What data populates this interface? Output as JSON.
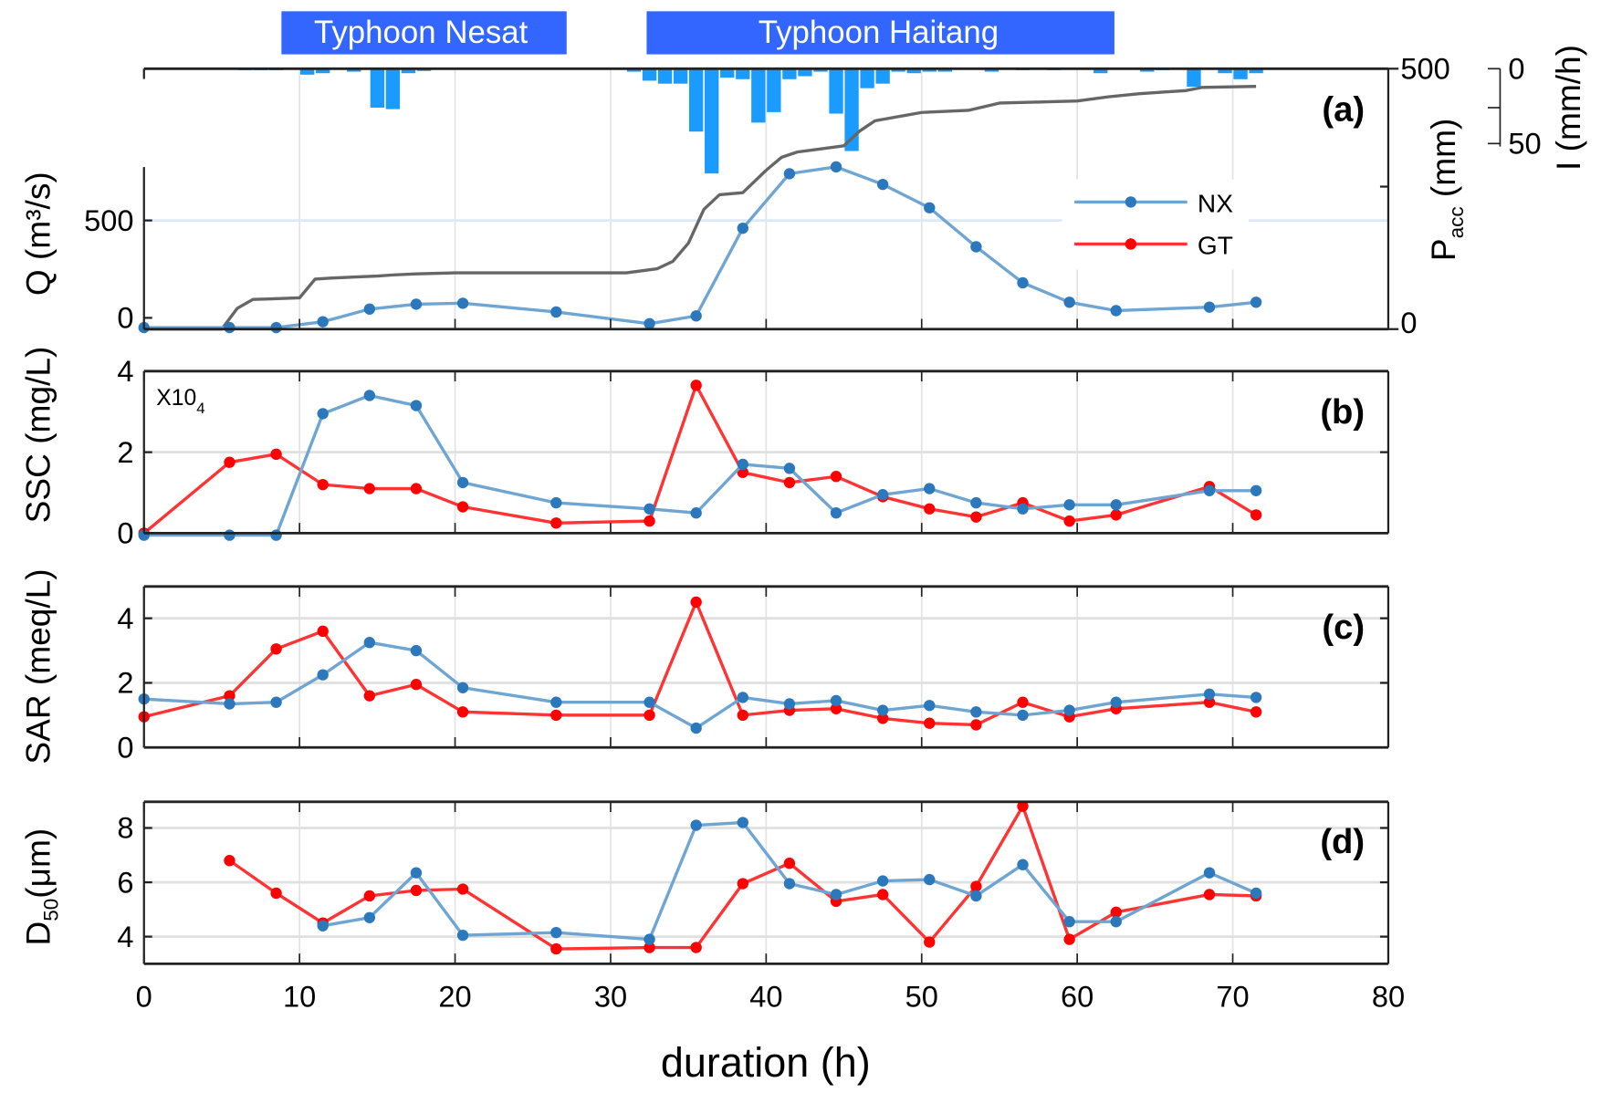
{
  "chart_data": [
    {
      "panel": "(a)",
      "type": "line",
      "typhoons": [
        "Typhoon Nesat",
        "Typhoon Haitang"
      ],
      "xlabel": "duration (h)",
      "xlim": [
        0,
        80
      ],
      "xticks": [
        0,
        10,
        20,
        30,
        40,
        50,
        60,
        70,
        80
      ],
      "ylabel": "Q (m³/s)",
      "yticks": [
        0,
        500
      ],
      "y2label": "P",
      "y2label_sub": "acc",
      "y2label_unit": " (mm)",
      "y2ticks": [
        0,
        500
      ],
      "y3label": "I (mm/h)",
      "y3ticks": [
        0,
        50
      ],
      "legend": [
        "NX",
        "GT"
      ],
      "legend_position": "right",
      "series": [
        {
          "name": "NX",
          "x": [
            0,
            5.5,
            8.5,
            11.5,
            14.5,
            17.5,
            20.5,
            26.5,
            32.5,
            35.5,
            38.5,
            41.5,
            44.5,
            47.5,
            50.5,
            53.5,
            56.5,
            59.5,
            62.5,
            68.5,
            71.5
          ],
          "values": [
            -50,
            -50,
            -50,
            -20,
            45,
            70,
            75,
            30,
            -30,
            10,
            460,
            740,
            775,
            685,
            565,
            365,
            180,
            80,
            37,
            55,
            80
          ]
        }
      ],
      "pacc": {
        "x": [
          0,
          5,
          6,
          7,
          8,
          10,
          11,
          12,
          15,
          16,
          17.5,
          20,
          31,
          33,
          34,
          35,
          36,
          37,
          38.5,
          40,
          41,
          42,
          45,
          46,
          47,
          50,
          53,
          55,
          60,
          62,
          64,
          67,
          68,
          71.5
        ],
        "values": [
          0,
          0,
          40,
          57,
          58,
          60,
          96,
          98,
          102,
          104,
          106,
          108,
          108,
          116,
          130,
          165,
          230,
          258,
          262,
          305,
          330,
          340,
          352,
          380,
          400,
          416,
          420,
          434,
          438,
          446,
          452,
          458,
          464,
          466
        ]
      },
      "rain": {
        "x": [
          6.5,
          7.5,
          8.5,
          10.5,
          11.5,
          13.5,
          15,
          16,
          17,
          18,
          31.5,
          32.5,
          33.5,
          34.5,
          35.5,
          36.5,
          37.5,
          38.5,
          39.5,
          40.5,
          41.5,
          42.5,
          43.5,
          44.5,
          45.5,
          46.5,
          47.5,
          48.5,
          49.5,
          50.5,
          51.5,
          54.5,
          56.5,
          58.5,
          61.5,
          64.5,
          65.5,
          67.5,
          69.5,
          70.5,
          71.5
        ],
        "values": [
          1,
          1,
          1,
          4,
          3,
          2,
          26,
          27,
          3,
          1.5,
          2,
          8,
          10,
          10,
          42,
          70,
          6,
          7,
          36,
          29,
          7,
          5,
          2,
          30,
          55,
          13,
          10,
          2,
          3,
          2,
          2,
          2,
          1,
          1,
          3,
          2,
          1,
          12,
          3,
          7,
          3
        ]
      }
    },
    {
      "panel": "(b)",
      "type": "line",
      "ylabel": "SSC (mg/L)",
      "multiplier": "X10",
      "multiplier_exp": "4",
      "ylim": [
        0,
        4
      ],
      "yticks": [
        0,
        2,
        4
      ],
      "series": [
        {
          "name": "NX",
          "x": [
            0,
            5.5,
            8.5,
            11.5,
            14.5,
            17.5,
            20.5,
            26.5,
            32.5,
            35.5,
            38.5,
            41.5,
            44.5,
            47.5,
            50.5,
            53.5,
            56.5,
            59.5,
            62.5,
            68.5,
            71.5
          ],
          "values": [
            -0.05,
            -0.05,
            -0.05,
            2.95,
            3.4,
            3.15,
            1.25,
            0.75,
            0.6,
            0.5,
            1.7,
            1.6,
            0.5,
            0.95,
            1.1,
            0.75,
            0.6,
            0.7,
            0.7,
            1.05,
            1.05
          ]
        },
        {
          "name": "GT",
          "x": [
            0,
            5.5,
            8.5,
            11.5,
            14.5,
            17.5,
            20.5,
            26.5,
            32.5,
            35.5,
            38.5,
            41.5,
            44.5,
            47.5,
            50.5,
            53.5,
            56.5,
            59.5,
            62.5,
            68.5,
            71.5
          ],
          "values": [
            0,
            1.75,
            1.95,
            1.2,
            1.1,
            1.1,
            0.65,
            0.25,
            0.3,
            3.65,
            1.5,
            1.25,
            1.4,
            0.9,
            0.6,
            0.4,
            0.75,
            0.3,
            0.45,
            1.15,
            0.45
          ]
        }
      ]
    },
    {
      "panel": "(c)",
      "type": "line",
      "ylabel": "SAR (meq/L)",
      "ylim": [
        0,
        5
      ],
      "yticks": [
        0,
        2,
        4
      ],
      "series": [
        {
          "name": "NX",
          "x": [
            0,
            5.5,
            8.5,
            11.5,
            14.5,
            17.5,
            20.5,
            26.5,
            32.5,
            35.5,
            38.5,
            41.5,
            44.5,
            47.5,
            50.5,
            53.5,
            56.5,
            59.5,
            62.5,
            68.5,
            71.5
          ],
          "values": [
            1.5,
            1.35,
            1.4,
            2.25,
            3.25,
            3.0,
            1.85,
            1.4,
            1.4,
            0.6,
            1.55,
            1.35,
            1.45,
            1.15,
            1.3,
            1.1,
            1.0,
            1.15,
            1.4,
            1.65,
            1.55
          ]
        },
        {
          "name": "GT",
          "x": [
            0,
            5.5,
            8.5,
            11.5,
            14.5,
            17.5,
            20.5,
            26.5,
            32.5,
            35.5,
            38.5,
            41.5,
            44.5,
            47.5,
            50.5,
            53.5,
            56.5,
            59.5,
            62.5,
            68.5,
            71.5
          ],
          "values": [
            0.95,
            1.6,
            3.05,
            3.6,
            1.6,
            1.95,
            1.1,
            1.0,
            1.0,
            4.5,
            1.0,
            1.15,
            1.2,
            0.9,
            0.75,
            0.7,
            1.4,
            0.95,
            1.2,
            1.4,
            1.1
          ]
        }
      ]
    },
    {
      "panel": "(d)",
      "type": "line",
      "ylabel": "D",
      "ylabel_sub": "50",
      "ylabel_unit": "(μm)",
      "ylim": [
        3,
        9
      ],
      "yticks": [
        4,
        6,
        8
      ],
      "series": [
        {
          "name": "NX",
          "x": [
            11.5,
            14.5,
            17.5,
            20.5,
            26.5,
            32.5,
            35.5,
            38.5,
            41.5,
            44.5,
            47.5,
            50.5,
            53.5,
            56.5,
            59.5,
            62.5,
            68.5,
            71.5
          ],
          "values": [
            4.4,
            4.7,
            6.35,
            4.05,
            4.15,
            3.9,
            8.1,
            8.2,
            5.95,
            5.55,
            6.05,
            6.1,
            5.5,
            6.65,
            4.55,
            4.55,
            6.35,
            5.6
          ]
        },
        {
          "name": "GT",
          "x": [
            5.5,
            8.5,
            11.5,
            14.5,
            17.5,
            20.5,
            26.5,
            32.5,
            35.5,
            38.5,
            41.5,
            44.5,
            47.5,
            50.5,
            53.5,
            56.5,
            59.5,
            62.5,
            68.5,
            71.5
          ],
          "values": [
            6.8,
            5.6,
            4.5,
            5.5,
            5.7,
            5.75,
            3.55,
            3.6,
            3.6,
            5.95,
            6.7,
            5.3,
            5.55,
            3.8,
            5.85,
            8.8,
            3.9,
            4.9,
            5.55,
            5.5
          ]
        }
      ]
    }
  ],
  "colors": {
    "nx_line": "#6fa5d2",
    "nx_marker": "#2b78bd",
    "gt_line": "#ff3333",
    "gt_marker": "#ff0000",
    "rain": "#1a9bff",
    "pacc": "#666666",
    "typhoon": "#3366ff"
  }
}
